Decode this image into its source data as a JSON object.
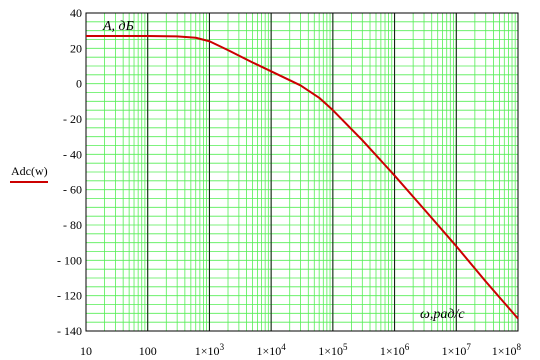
{
  "chart_data": {
    "type": "line",
    "title": "",
    "ylabel": "A, дБ",
    "xlabel": "ω,рад/с",
    "x_scale": "log",
    "xlim": [
      10,
      100000000
    ],
    "ylim": [
      -140,
      40
    ],
    "grid": true,
    "legend_position": "left",
    "y_ticks": [
      40,
      20,
      0,
      -20,
      -40,
      -60,
      -80,
      -100,
      -120,
      -140
    ],
    "y_tick_labels": [
      "40",
      "20",
      "0",
      "- 20",
      "- 40",
      "- 60",
      "- 80",
      "- 100",
      "- 120",
      "- 140"
    ],
    "x_ticks": [
      10,
      100,
      1000,
      10000,
      100000,
      1000000,
      10000000,
      100000000
    ],
    "x_tick_labels": [
      {
        "base": "10",
        "exp": ""
      },
      {
        "base": "100",
        "exp": ""
      },
      {
        "base": "1×10",
        "exp": "3"
      },
      {
        "base": "1×10",
        "exp": "4"
      },
      {
        "base": "1×10",
        "exp": "5"
      },
      {
        "base": "1×10",
        "exp": "6"
      },
      {
        "base": "1×10",
        "exp": "7"
      },
      {
        "base": "1×10",
        "exp": "8"
      }
    ],
    "series": [
      {
        "name": "Adc(w)",
        "color": "#cc0000",
        "x": [
          10,
          100,
          300,
          600,
          1000,
          2000,
          5000,
          10000,
          30000,
          60000,
          100000,
          300000,
          1000000,
          3000000,
          10000000,
          30000000,
          100000000
        ],
        "y": [
          27,
          27,
          26.8,
          26,
          24,
          19,
          12,
          7,
          -1,
          -8,
          -15,
          -32,
          -52,
          -71,
          -92,
          -112,
          -133
        ]
      }
    ]
  },
  "colors": {
    "grid": "#55ee55",
    "axis": "#000000",
    "curve": "#cc0000"
  }
}
